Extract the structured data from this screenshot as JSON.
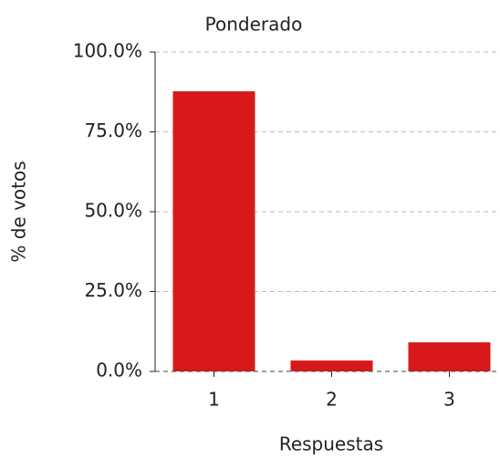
{
  "chart_data": {
    "type": "bar",
    "title": "Ponderado",
    "ylabel": "% de votos",
    "xlabel": "Respuestas",
    "categories": [
      "1",
      "2",
      "3"
    ],
    "values": [
      87.7,
      3.4,
      9.1
    ],
    "color": "#d7191c",
    "ylim": [
      0,
      100
    ],
    "yticks": [
      {
        "value": 0,
        "label": "0.0%"
      },
      {
        "value": 25,
        "label": "25.0%"
      },
      {
        "value": 50,
        "label": "50.0%"
      },
      {
        "value": 75,
        "label": "75.0%"
      },
      {
        "value": 100,
        "label": "100.0%"
      }
    ],
    "grid": true
  }
}
